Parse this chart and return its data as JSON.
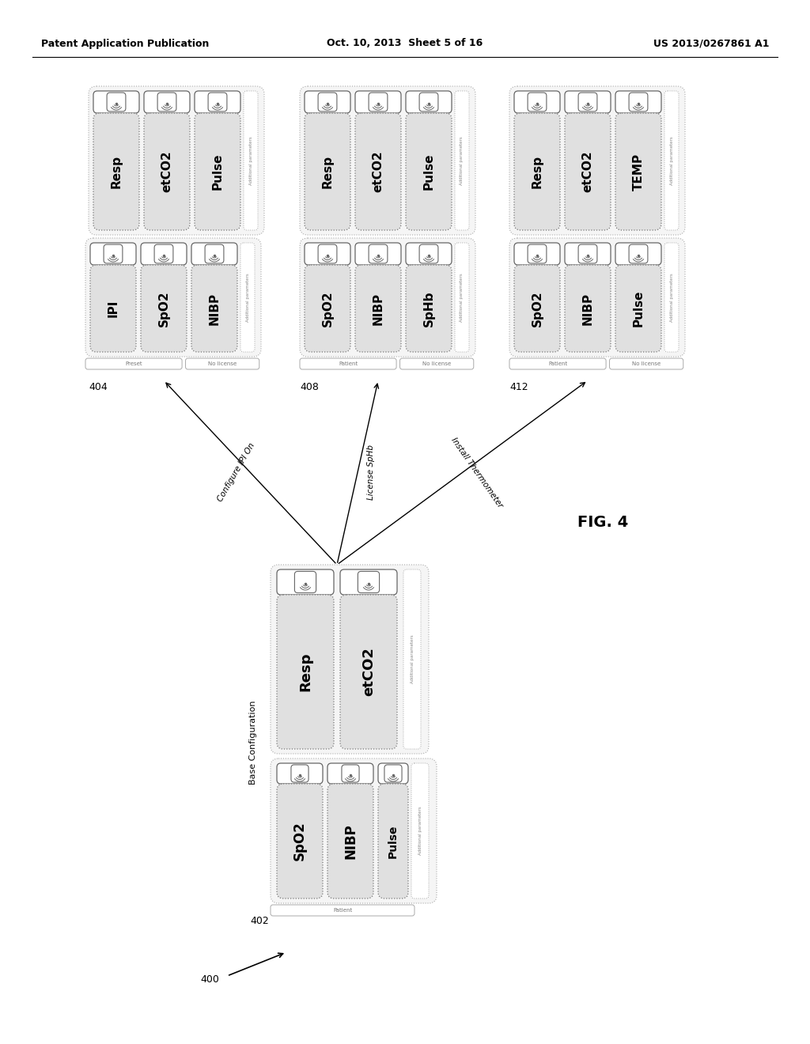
{
  "bg_color": "#ffffff",
  "header_left": "Patent Application Publication",
  "header_mid": "Oct. 10, 2013  Sheet 5 of 16",
  "header_right": "US 2013/0267861 A1",
  "fig_label": "FIG. 4",
  "box402_top_params": [
    "Resp",
    "etCO2"
  ],
  "box402_bot_params": [
    "SpO2",
    "NIBP",
    "Pulse"
  ],
  "box404_top_params": [
    "Resp",
    "etCO2",
    "Pulse"
  ],
  "box404_bot_params": [
    "IPI",
    "SpO2",
    "NIBP"
  ],
  "box408_top_params": [
    "Resp",
    "etCO2",
    "Pulse"
  ],
  "box408_bot_params": [
    "SpO2",
    "NIBP",
    "SpHb"
  ],
  "box412_top_params": [
    "Resp",
    "etCO2",
    "TEMP"
  ],
  "box412_bot_params": [
    "SpO2",
    "NIBP",
    "Pulse"
  ],
  "arrow404_label": "Configure IPI On",
  "arrow408_label": "License SpHb",
  "arrow412_label": "Install Thermometer"
}
